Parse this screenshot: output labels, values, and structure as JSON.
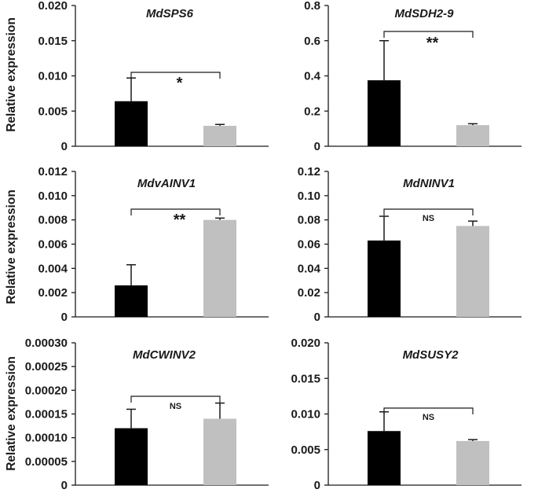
{
  "colors": {
    "group1": "#000000",
    "group2": "#c0c0c0",
    "axis": "#1a1a1a"
  },
  "ylabel": "Relative expression",
  "chart_data": [
    {
      "type": "bar",
      "title": "MdSPS6",
      "ylim": [
        0,
        0.02
      ],
      "ticks": [
        "0",
        "0.005",
        "0.010",
        "0.015",
        "0.020"
      ],
      "values": [
        0.0064,
        0.0029
      ],
      "errors": [
        0.0033,
        0.0002
      ],
      "significance": "*"
    },
    {
      "type": "bar",
      "title": "MdSDH2-9",
      "ylim": [
        0,
        0.8
      ],
      "ticks": [
        "0",
        "0.2",
        "0.4",
        "0.6",
        "0.8"
      ],
      "values": [
        0.375,
        0.12
      ],
      "errors": [
        0.225,
        0.008
      ],
      "significance": "**"
    },
    {
      "type": "bar",
      "title": "MdvAINV1",
      "ylim": [
        0,
        0.012
      ],
      "ticks": [
        "0",
        "0.002",
        "0.004",
        "0.006",
        "0.008",
        "0.010",
        "0.012"
      ],
      "values": [
        0.0026,
        0.008
      ],
      "errors": [
        0.0017,
        0.00015
      ],
      "significance": "**"
    },
    {
      "type": "bar",
      "title": "MdNINV1",
      "ylim": [
        0,
        0.12
      ],
      "ticks": [
        "0",
        "0.02",
        "0.04",
        "0.06",
        "0.08",
        "0.10",
        "0.12"
      ],
      "values": [
        0.063,
        0.075
      ],
      "errors": [
        0.02,
        0.004
      ],
      "significance": "NS"
    },
    {
      "type": "bar",
      "title": "MdCWINV2",
      "ylim": [
        0,
        0.0003
      ],
      "ticks": [
        "0",
        "0.00005",
        "0.00010",
        "0.00015",
        "0.00020",
        "0.00025",
        "0.00030"
      ],
      "values": [
        0.00012,
        0.00014
      ],
      "errors": [
        4e-05,
        3.3e-05
      ],
      "significance": "NS"
    },
    {
      "type": "bar",
      "title": "MdSUSY2",
      "ylim": [
        0,
        0.02
      ],
      "ticks": [
        "0",
        "0.005",
        "0.010",
        "0.015",
        "0.020"
      ],
      "values": [
        0.0076,
        0.0062
      ],
      "errors": [
        0.0027,
        0.0002
      ],
      "significance": "NS"
    }
  ]
}
